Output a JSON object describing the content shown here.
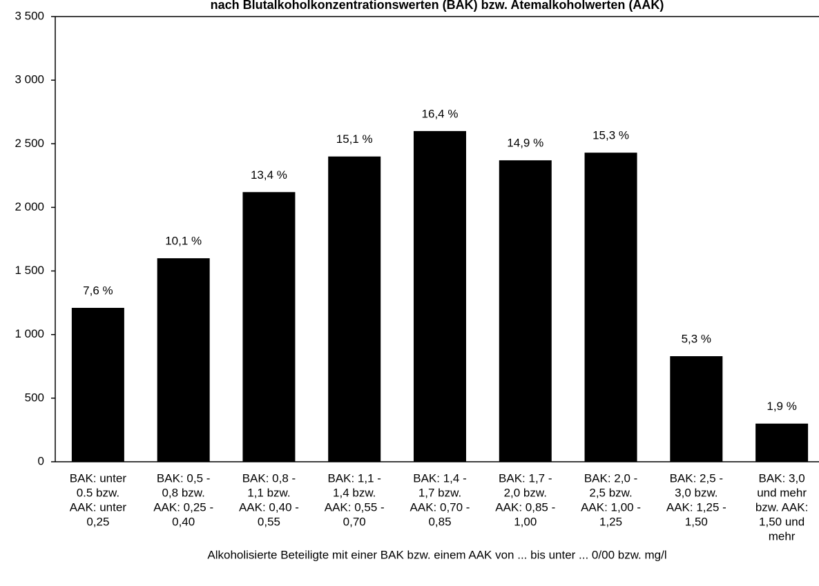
{
  "chart_data": {
    "type": "bar",
    "title": "nach Blutalkoholkonzentrationswerten (BAK) bzw. Atemalkoholwerten (AAK)",
    "x_label": "Alkoholisierte Beteiligte mit einer BAK bzw. einem AAK von ... bis unter ... 0/00 bzw. mg/l",
    "categories": [
      [
        "BAK: unter",
        "0.5 bzw.",
        "AAK: unter",
        "0,25"
      ],
      [
        "BAK: 0,5 -",
        "0,8 bzw.",
        "AAK: 0,25 -",
        "0,40"
      ],
      [
        "BAK: 0,8 -",
        "1,1 bzw.",
        "AAK: 0,40 -",
        "0,55"
      ],
      [
        "BAK: 1,1 -",
        "1,4 bzw.",
        "AAK: 0,55 -",
        "0,70"
      ],
      [
        "BAK: 1,4 -",
        "1,7 bzw.",
        "AAK: 0,70 -",
        "0,85"
      ],
      [
        "BAK: 1,7 -",
        "2,0 bzw.",
        "AAK: 0,85 -",
        "1,00"
      ],
      [
        "BAK: 2,0 -",
        "2,5 bzw.",
        "AAK: 1,00 -",
        "1,25"
      ],
      [
        "BAK: 2,5 -",
        "3,0 bzw.",
        "AAK: 1,25 -",
        "1,50"
      ],
      [
        "BAK: 3,0",
        "und mehr",
        "bzw. AAK:",
        "1,50 und",
        "mehr"
      ]
    ],
    "values": [
      1210,
      1600,
      2120,
      2400,
      2600,
      2370,
      2430,
      830,
      300
    ],
    "percent_labels": [
      "7,6 %",
      "10,1 %",
      "13,4 %",
      "15,1 %",
      "16,4 %",
      "14,9 %",
      "15,3 %",
      "5,3 %",
      "1,9 %"
    ],
    "color": "#000000",
    "ylim": [
      0,
      3500
    ],
    "yticks": [
      0,
      500,
      {
        "value": 1000,
        "label": "1 000"
      },
      {
        "value": 1500,
        "label": "1 500"
      },
      {
        "value": 2000,
        "label": "2 000"
      },
      {
        "value": 2500,
        "label": "2 500"
      },
      {
        "value": 3000,
        "label": "3 000"
      },
      {
        "value": 3500,
        "label": "3 500"
      }
    ],
    "grid": false
  }
}
